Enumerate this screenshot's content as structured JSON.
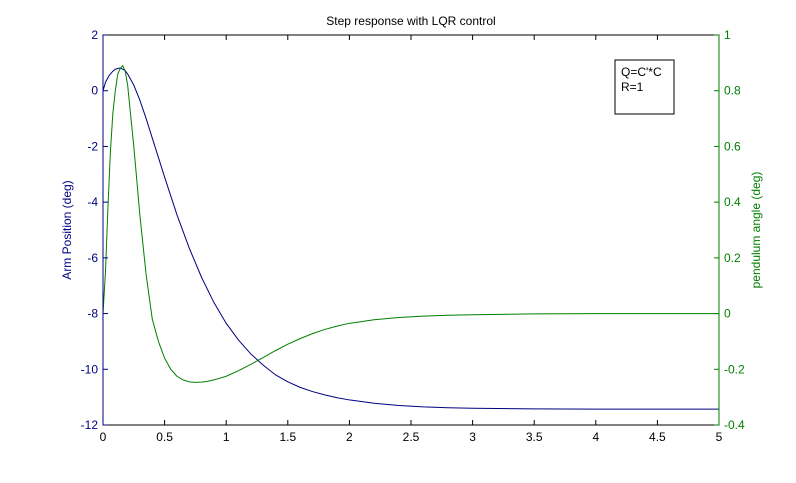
{
  "chart_data": {
    "type": "line",
    "title": "Step response with LQR control",
    "xlabel": "",
    "xlim": [
      0,
      5
    ],
    "x_ticks": [
      0,
      0.5,
      1,
      1.5,
      2,
      2.5,
      3,
      3.5,
      4,
      4.5,
      5
    ],
    "x_tick_labels": [
      "0",
      "0.5",
      "1",
      "1.5",
      "2",
      "2.5",
      "3",
      "3.5",
      "4",
      "4.5",
      "5"
    ],
    "y_left": {
      "label": "Arm Position (deg)",
      "color": "#00007f",
      "lim": [
        -12,
        2
      ],
      "ticks": [
        -12,
        -10,
        -8,
        -6,
        -4,
        -2,
        0,
        2
      ],
      "tick_labels": [
        "-12",
        "-10",
        "-8",
        "-6",
        "-4",
        "-2",
        "0",
        "2"
      ]
    },
    "y_right": {
      "label": "pendulum angle (deg)",
      "color": "#007f00",
      "lim": [
        -0.4,
        1
      ],
      "ticks": [
        -0.4,
        -0.2,
        0,
        0.2,
        0.4,
        0.6,
        0.8,
        1
      ],
      "tick_labels": [
        "-0.4",
        "-0.2",
        "0",
        "0.2",
        "0.4",
        "0.6",
        "0.8",
        "1"
      ]
    },
    "grid": false,
    "annotation": {
      "lines": [
        "Q=C'*C",
        "R=1"
      ],
      "placement": "top-right"
    },
    "series": [
      {
        "axis": "left",
        "color": "#00007f",
        "x": [
          0,
          0.02,
          0.05,
          0.08,
          0.1,
          0.13,
          0.15,
          0.18,
          0.2,
          0.25,
          0.3,
          0.35,
          0.4,
          0.45,
          0.5,
          0.6,
          0.7,
          0.8,
          0.9,
          1.0,
          1.1,
          1.2,
          1.3,
          1.4,
          1.5,
          1.6,
          1.7,
          1.8,
          1.9,
          2.0,
          2.2,
          2.4,
          2.6,
          2.8,
          3.0,
          3.2,
          3.5,
          4.0,
          4.5,
          5.0
        ],
        "y": [
          0,
          0.3,
          0.55,
          0.7,
          0.77,
          0.81,
          0.8,
          0.72,
          0.6,
          0.2,
          -0.35,
          -1.0,
          -1.7,
          -2.4,
          -3.1,
          -4.45,
          -5.65,
          -6.7,
          -7.6,
          -8.35,
          -8.95,
          -9.45,
          -9.85,
          -10.2,
          -10.45,
          -10.65,
          -10.8,
          -10.92,
          -11.02,
          -11.1,
          -11.22,
          -11.3,
          -11.35,
          -11.38,
          -11.4,
          -11.41,
          -11.42,
          -11.43,
          -11.43,
          -11.43
        ]
      },
      {
        "axis": "right",
        "color": "#007f00",
        "x": [
          0,
          0.02,
          0.04,
          0.06,
          0.08,
          0.1,
          0.12,
          0.14,
          0.16,
          0.18,
          0.2,
          0.25,
          0.3,
          0.35,
          0.4,
          0.45,
          0.5,
          0.55,
          0.6,
          0.65,
          0.7,
          0.75,
          0.8,
          0.85,
          0.9,
          0.95,
          1.0,
          1.1,
          1.2,
          1.3,
          1.4,
          1.5,
          1.6,
          1.7,
          1.8,
          1.9,
          2.0,
          2.2,
          2.4,
          2.6,
          2.8,
          3.0,
          3.5,
          4.0,
          4.5,
          5.0
        ],
        "y": [
          0,
          0.15,
          0.38,
          0.58,
          0.72,
          0.8,
          0.86,
          0.88,
          0.89,
          0.87,
          0.82,
          0.6,
          0.35,
          0.14,
          -0.02,
          -0.1,
          -0.16,
          -0.2,
          -0.225,
          -0.238,
          -0.245,
          -0.247,
          -0.246,
          -0.243,
          -0.238,
          -0.232,
          -0.225,
          -0.205,
          -0.182,
          -0.158,
          -0.133,
          -0.11,
          -0.09,
          -0.072,
          -0.057,
          -0.045,
          -0.035,
          -0.022,
          -0.014,
          -0.009,
          -0.006,
          -0.004,
          -0.001,
          0,
          0,
          0
        ]
      }
    ]
  }
}
